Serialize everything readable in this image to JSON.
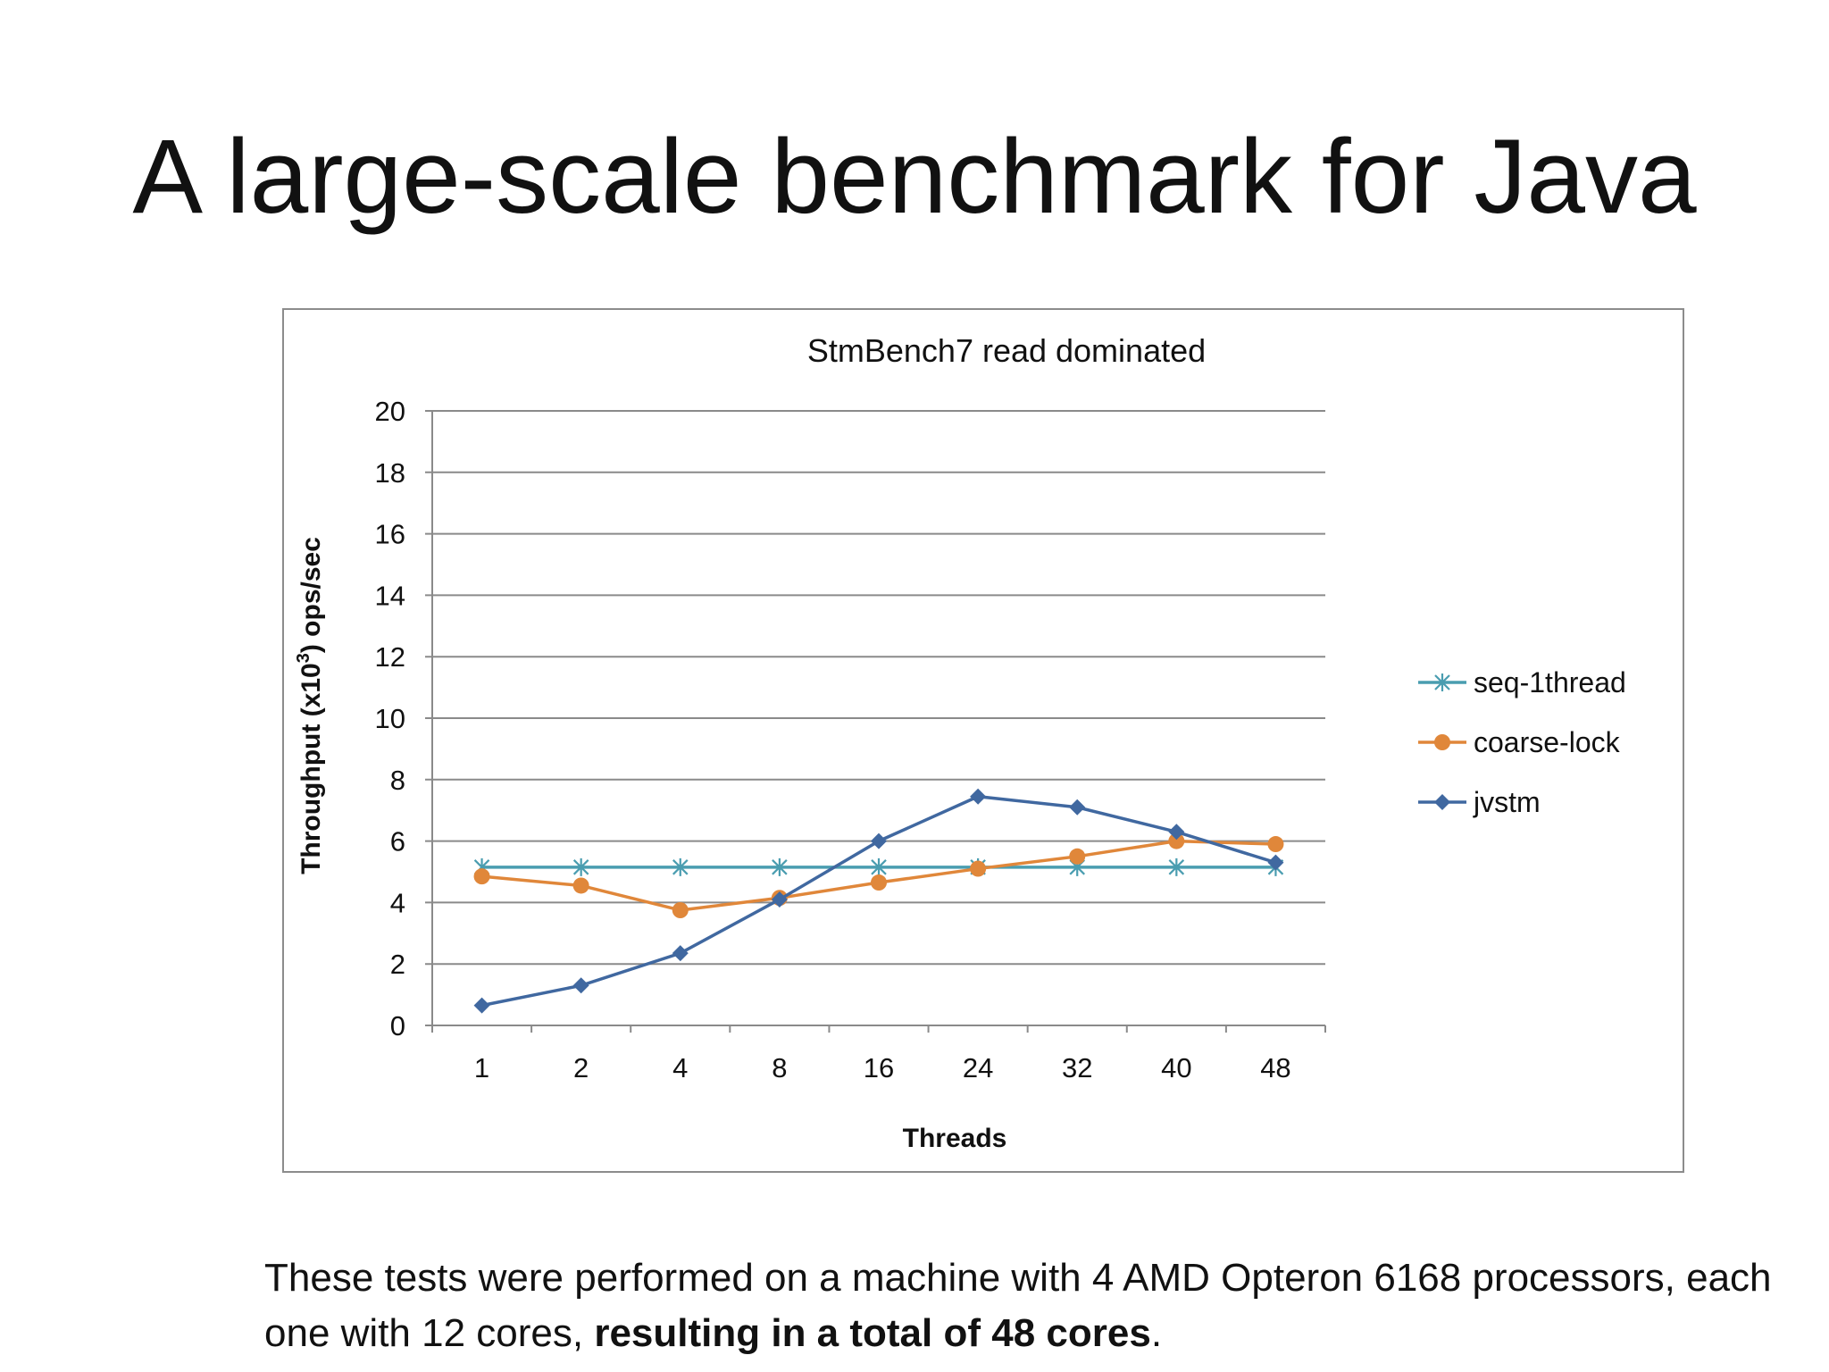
{
  "slide": {
    "title": "A large-scale benchmark for Java"
  },
  "footer": {
    "text_before": "These tests were performed on a machine with 4 AMD Opteron 6168 processors, each one with 12 cores, ",
    "text_bold": "resulting in a total of 48 cores",
    "text_after": "."
  },
  "chart_data": {
    "type": "line",
    "title": "StmBench7 read dominated",
    "xlabel": "Threads",
    "ylabel_main": "Throughput (x10",
    "ylabel_sup": "3",
    "ylabel_end": ") ops/sec",
    "categories": [
      "1",
      "2",
      "4",
      "8",
      "16",
      "24",
      "32",
      "40",
      "48"
    ],
    "ylim": [
      0,
      20
    ],
    "yticks": [
      0,
      2,
      4,
      6,
      8,
      10,
      12,
      14,
      16,
      18,
      20
    ],
    "grid": "horizontal",
    "legend_position": "right",
    "series": [
      {
        "name": "seq-1thread",
        "color": "#4a9db0",
        "marker": "star",
        "values": [
          5.15,
          5.15,
          5.15,
          5.15,
          5.15,
          5.15,
          5.15,
          5.15,
          5.15
        ]
      },
      {
        "name": "coarse-lock",
        "color": "#e0873a",
        "marker": "circle",
        "values": [
          4.85,
          4.55,
          3.75,
          4.15,
          4.65,
          5.1,
          5.5,
          6.0,
          5.9
        ]
      },
      {
        "name": "jvstm",
        "color": "#4068a0",
        "marker": "diamond",
        "values": [
          0.65,
          1.3,
          2.35,
          4.1,
          6.0,
          7.45,
          7.1,
          6.3,
          5.3
        ]
      }
    ]
  }
}
